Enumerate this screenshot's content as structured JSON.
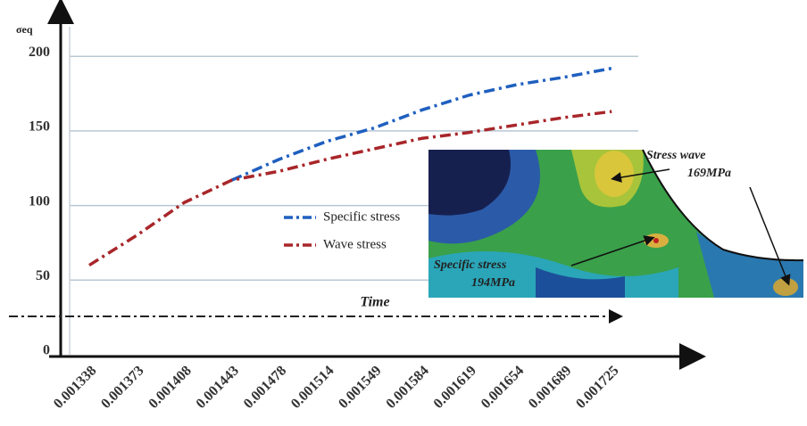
{
  "chart_data": {
    "type": "line",
    "y_label": "σeq",
    "categories": [
      "0.001338",
      "0.001373",
      "0.001408",
      "0.001443",
      "0.001478",
      "0.001514",
      "0.001549",
      "0.001584",
      "0.001619",
      "0.001654",
      "0.001689",
      "0.001725"
    ],
    "series": [
      {
        "name": "Specific stress",
        "color": "#1f5fbf",
        "values": [
          null,
          null,
          null,
          117,
          131,
          143,
          152,
          164,
          174,
          181,
          186,
          192
        ]
      },
      {
        "name": "Wave stress",
        "color": "#a8262a",
        "values": [
          60,
          80,
          102,
          117,
          123,
          131,
          138,
          145,
          149,
          154,
          159,
          163
        ]
      }
    ],
    "ylim": [
      0,
      230
    ],
    "yticks": [
      0,
      50,
      100,
      150,
      200
    ],
    "grid": true,
    "annotations": {
      "time": "Time",
      "stress_wave_title": "Stress wave",
      "stress_wave_value": "169MPa",
      "specific_title": "Specific stress",
      "specific_value": "194MPa"
    }
  }
}
